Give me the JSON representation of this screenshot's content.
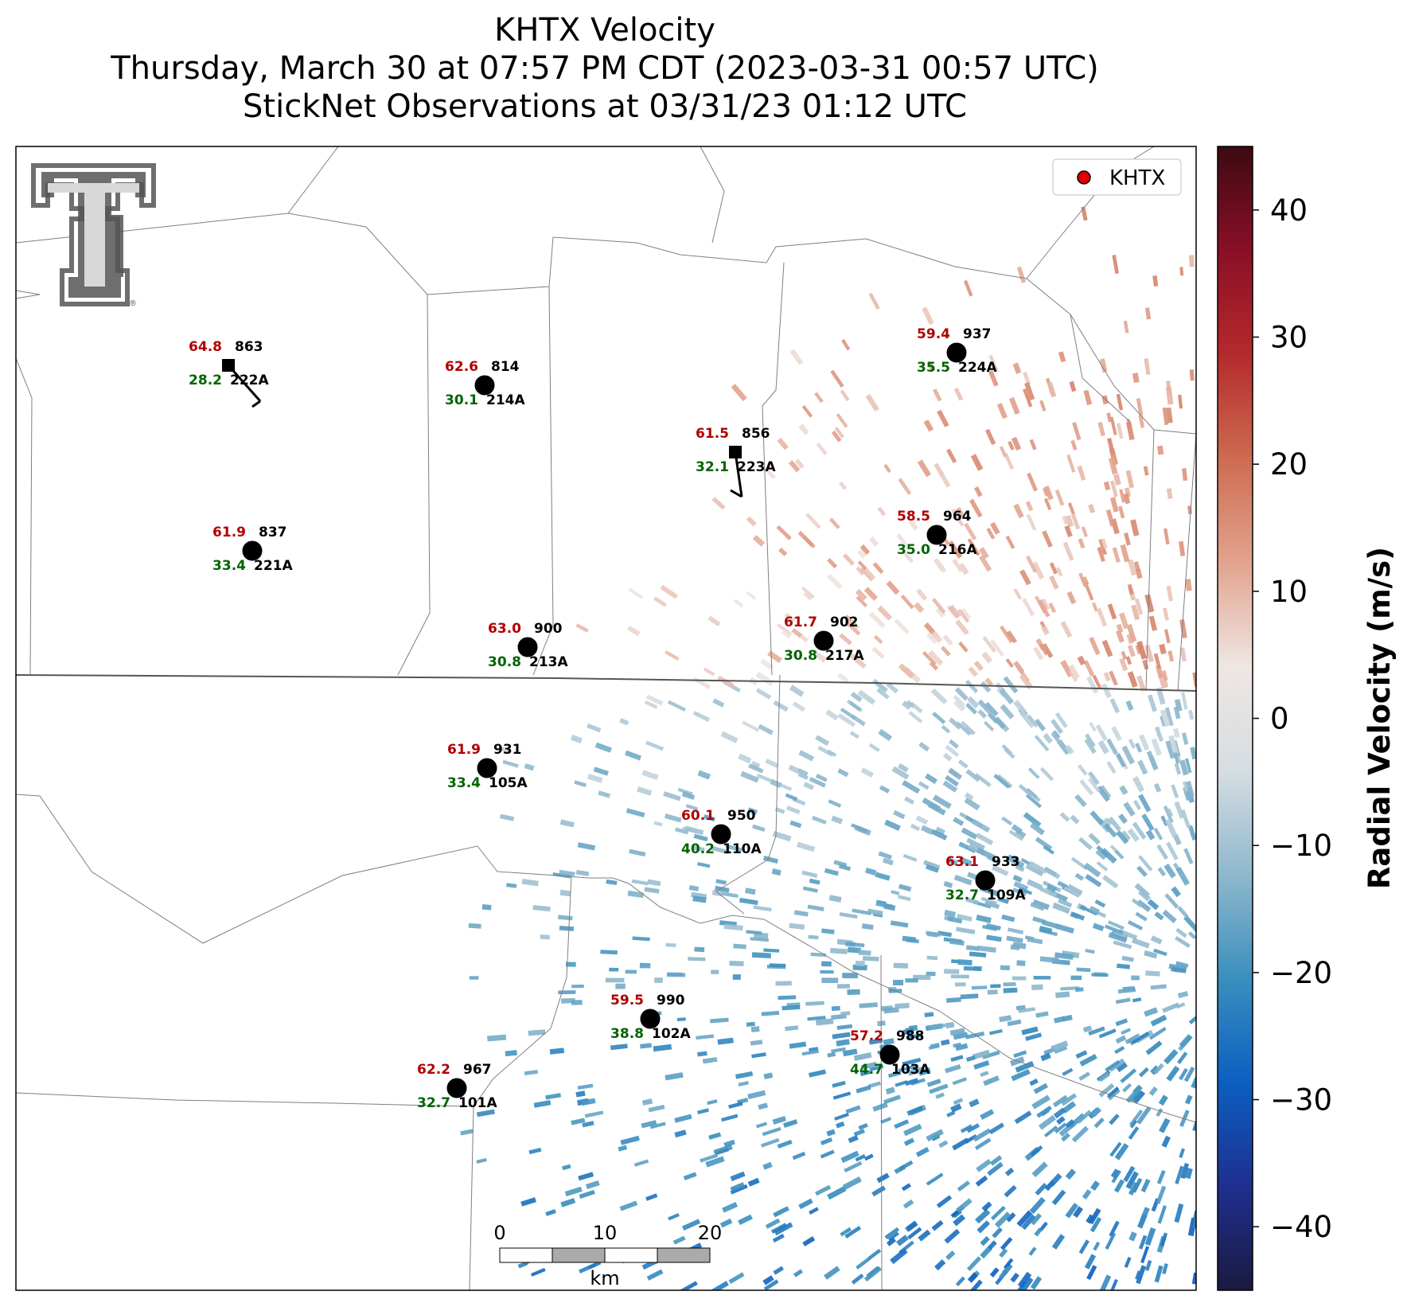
{
  "title": {
    "line1": "KHTX Velocity",
    "line2": "Thursday, March 30 at 07:57 PM CDT (2023-03-31 00:57 UTC)",
    "line3": "StickNet Observations at 03/31/23 01:12 UTC"
  },
  "legend": {
    "label": "KHTX",
    "marker_color": "#e00000"
  },
  "colorbar": {
    "label": "Radial Velocity (m/s)",
    "min": -45,
    "max": 45,
    "ticks": [
      "40",
      "30",
      "20",
      "10",
      "0",
      "−10",
      "−20",
      "−30",
      "−40"
    ],
    "tick_values": [
      40,
      30,
      20,
      10,
      0,
      -10,
      -20,
      -30,
      -40
    ],
    "colors": [
      "#1a1a40",
      "#1f2f8f",
      "#0b5fc0",
      "#3a8fbe",
      "#8fb8cc",
      "#d6dde2",
      "#efe6e3",
      "#e2a38e",
      "#cd6b50",
      "#b52a2c",
      "#8a0f26",
      "#3d0a12"
    ]
  },
  "scale_bar": {
    "labels": [
      "0",
      "10",
      "20"
    ],
    "unit": "km"
  },
  "logo": {
    "name": "texas-tech-double-t-logo",
    "registered_mark": "®"
  },
  "stations": [
    {
      "id": "222A",
      "number": "863",
      "temp": "64.8",
      "dew": "28.2",
      "marker": "square",
      "barb_dir": "nw"
    },
    {
      "id": "214A",
      "number": "814",
      "temp": "62.6",
      "dew": "30.1",
      "marker": "circle"
    },
    {
      "id": "224A",
      "number": "937",
      "temp": "59.4",
      "dew": "35.5",
      "marker": "circle"
    },
    {
      "id": "223A",
      "number": "856",
      "temp": "61.5",
      "dew": "32.1",
      "marker": "square",
      "barb_dir": "n"
    },
    {
      "id": "221A",
      "number": "837",
      "temp": "61.9",
      "dew": "33.4",
      "marker": "circle"
    },
    {
      "id": "216A",
      "number": "964",
      "temp": "58.5",
      "dew": "35.0",
      "marker": "circle"
    },
    {
      "id": "213A",
      "number": "900",
      "temp": "63.0",
      "dew": "30.8",
      "marker": "circle"
    },
    {
      "id": "217A",
      "number": "902",
      "temp": "61.7",
      "dew": "30.8",
      "marker": "circle"
    },
    {
      "id": "105A",
      "number": "931",
      "temp": "61.9",
      "dew": "33.4",
      "marker": "circle"
    },
    {
      "id": "110A",
      "number": "950",
      "temp": "60.1",
      "dew": "40.2",
      "marker": "circle"
    },
    {
      "id": "109A",
      "number": "933",
      "temp": "63.1",
      "dew": "32.7",
      "marker": "circle"
    },
    {
      "id": "102A",
      "number": "990",
      "temp": "59.5",
      "dew": "38.8",
      "marker": "circle"
    },
    {
      "id": "103A",
      "number": "988",
      "temp": "57.2",
      "dew": "44.7",
      "marker": "circle"
    },
    {
      "id": "101A",
      "number": "967",
      "temp": "62.2",
      "dew": "32.7",
      "marker": "circle"
    }
  ]
}
